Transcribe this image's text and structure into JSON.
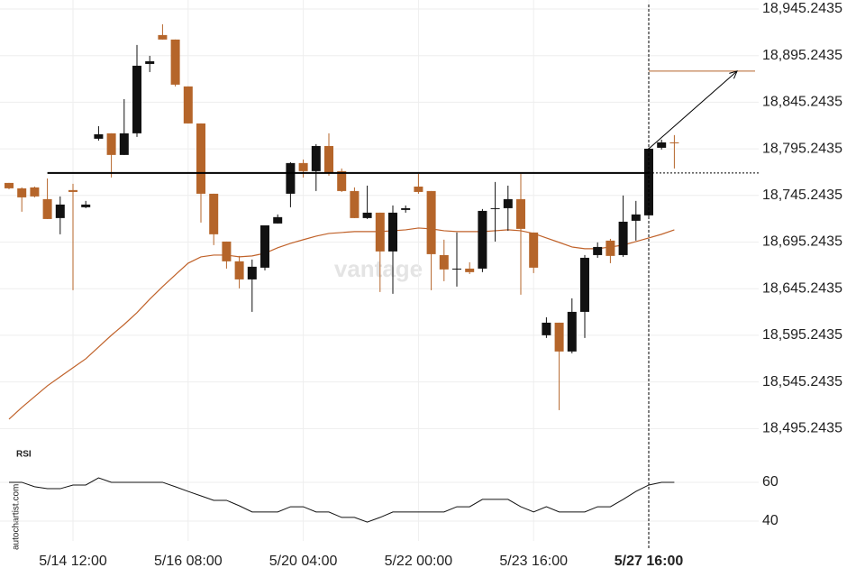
{
  "chart_data": [
    {
      "type": "candlestick",
      "categories": [
        null,
        null,
        null,
        null,
        null,
        "5/14 12:00",
        null,
        null,
        null,
        null,
        null,
        null,
        null,
        null,
        "5/16 08:00",
        null,
        null,
        null,
        null,
        null,
        null,
        null,
        null,
        "5/20 04:00",
        null,
        null,
        null,
        null,
        null,
        null,
        null,
        null,
        "5/22 00:00",
        null,
        null,
        null,
        null,
        null,
        null,
        null,
        null,
        "5/23 16:00",
        null,
        null,
        null,
        null,
        null,
        null,
        null,
        null,
        "5/27 16:00",
        null,
        null
      ],
      "open": [
        18758.7,
        18752.9,
        18753.9,
        18741.3,
        18721,
        18751,
        18732.6,
        18806.1,
        18811.9,
        18788.7,
        18811.9,
        18886.3,
        18917.3,
        18912.5,
        18862.2,
        18822.5,
        18747.1,
        18695.8,
        18674.6,
        18655.2,
        18667.8,
        18715.2,
        18747.1,
        18780,
        18771.3,
        18798.3,
        18771.3,
        18750,
        18721,
        18726.8,
        18685.2,
        18729.7,
        18754.8,
        18750,
        18681.3,
        18665.9,
        18666.8,
        18666.8,
        18730.7,
        18731.6,
        18741.3,
        18705.5,
        18595.3,
        18608.8,
        18577.9,
        18620.4,
        18681.3,
        18696.8,
        18681.3,
        18718.1,
        18723.9,
        18796.4,
        18802.2
      ],
      "high": [
        18758.7,
        18753.9,
        18754.8,
        18763.5,
        18744.2,
        18757.7,
        18739.4,
        18819.6,
        18811.9,
        18848.6,
        18906.7,
        18895,
        18928.9,
        18912.5,
        18862.2,
        18822.5,
        18747.1,
        18695.8,
        18680.4,
        18676.5,
        18713.2,
        18724.9,
        18780.9,
        18783.8,
        18800.3,
        18811.9,
        18774.2,
        18753.9,
        18755.8,
        18726.8,
        18734.5,
        18734.5,
        18768.4,
        18750,
        18697.8,
        18705.5,
        18673.6,
        18730.7,
        18759.7,
        18755.8,
        18768.4,
        18705.5,
        18614.6,
        18608.8,
        18634.9,
        18681.3,
        18694.9,
        18698.7,
        18745.2,
        18739.4,
        18796.4,
        18805.1,
        18810
      ],
      "low": [
        18751.9,
        18727.8,
        18743.2,
        18720,
        18703.6,
        18643.6,
        18731.6,
        18804.1,
        18764.5,
        18788.7,
        18808,
        18877.6,
        18912.5,
        18862.2,
        18822.5,
        18716.2,
        18692,
        18666.8,
        18645.6,
        18620.4,
        18664.9,
        18715.2,
        18732.6,
        18764.5,
        18750,
        18766.4,
        18749,
        18721,
        18720,
        18641.7,
        18639.8,
        18726.8,
        18747.1,
        18643.6,
        18653.3,
        18647.5,
        18661,
        18663,
        18695.8,
        18707.4,
        18638.8,
        18662,
        18592.4,
        18515,
        18575.9,
        18592.4,
        18678.4,
        18672.6,
        18679.4,
        18696.8,
        18722.9,
        18794.5,
        18774.2
      ],
      "close": [
        18752.9,
        18743.2,
        18744.2,
        18720,
        18735.5,
        18749,
        18735.5,
        18810.9,
        18788.7,
        18811.9,
        18884.4,
        18889.2,
        18912.5,
        18864.1,
        18822.5,
        18747.1,
        18703.6,
        18674.6,
        18655.2,
        18668.8,
        18713.2,
        18722,
        18780,
        18771.3,
        18798.3,
        18769.3,
        18750,
        18721,
        18726.8,
        18685.2,
        18726.8,
        18731.6,
        18749,
        18682.3,
        18665.9,
        18666.8,
        18663,
        18728.7,
        18731.6,
        18741.3,
        18709.4,
        18667.8,
        18608.8,
        18577.9,
        18620.4,
        18678.4,
        18690,
        18680.4,
        18717.1,
        18724.9,
        18795.4,
        18802.2,
        18801.2
      ],
      "up_color": "#111111",
      "down_color": "#b5652a",
      "moving_average": {
        "color": "#c0622a",
        "values": [
          18505.3,
          18517.9,
          18529.5,
          18541.1,
          18550.8,
          18560.5,
          18570.1,
          18582.7,
          18595.3,
          18606.9,
          18619.5,
          18634,
          18647.5,
          18660.1,
          18672.6,
          18679.4,
          18681.3,
          18681.3,
          18679.4,
          18680.4,
          18683.3,
          18689.1,
          18693.9,
          18697.8,
          18701.6,
          18704.5,
          18705.5,
          18706.5,
          18706.5,
          18706.5,
          18707.4,
          18708.4,
          18710.3,
          18709.4,
          18707.4,
          18706.5,
          18706.5,
          18706.5,
          18707.4,
          18708.4,
          18707.4,
          18704.5,
          18699.7,
          18694.9,
          18690,
          18688.1,
          18688.1,
          18690,
          18692,
          18695.8,
          18699.7,
          18703.6,
          18708.4
        ]
      },
      "level": 18769.3,
      "target": 18878.6,
      "target_color": "#b5652a",
      "watermark": "vantage",
      "ylim": [
        18471.4,
        18954.9
      ],
      "yticks": [
        {
          "value": 18945.2435,
          "label": "18,945.2435"
        },
        {
          "value": 18895.2435,
          "label": "18,895.2435"
        },
        {
          "value": 18845.2435,
          "label": "18,845.2435"
        },
        {
          "value": 18795.2435,
          "label": "18,795.2435"
        },
        {
          "value": 18745.2435,
          "label": "18,745.2435"
        },
        {
          "value": 18695.2435,
          "label": "18,695.2435"
        },
        {
          "value": 18645.2435,
          "label": "18,645.2435"
        },
        {
          "value": 18595.2435,
          "label": "18,595.2435"
        },
        {
          "value": 18545.2435,
          "label": "18,545.2435"
        },
        {
          "value": 18495.2435,
          "label": "18,495.2435"
        }
      ],
      "grid": true
    },
    {
      "type": "line",
      "title": "RSI",
      "source": "autochartist.com",
      "color": "#111111",
      "values": [
        60,
        60,
        57.7,
        56.7,
        56.7,
        58.6,
        58.6,
        62.3,
        60,
        60,
        60,
        60,
        60,
        57.7,
        55.3,
        53,
        50.7,
        50.7,
        47.9,
        44.7,
        44.7,
        44.7,
        47.4,
        47.4,
        44.7,
        44.7,
        41.9,
        41.9,
        39.5,
        41.9,
        44.7,
        44.7,
        44.7,
        44.7,
        44.7,
        47.4,
        47.4,
        51.2,
        51.2,
        51.2,
        47.4,
        44.7,
        47.4,
        44.7,
        44.7,
        44.7,
        47.4,
        47.4,
        51.2,
        55.3,
        58.6,
        60,
        60
      ],
      "ylim": [
        34,
        63
      ],
      "yticks": [
        40,
        60
      ],
      "grid": true
    }
  ]
}
